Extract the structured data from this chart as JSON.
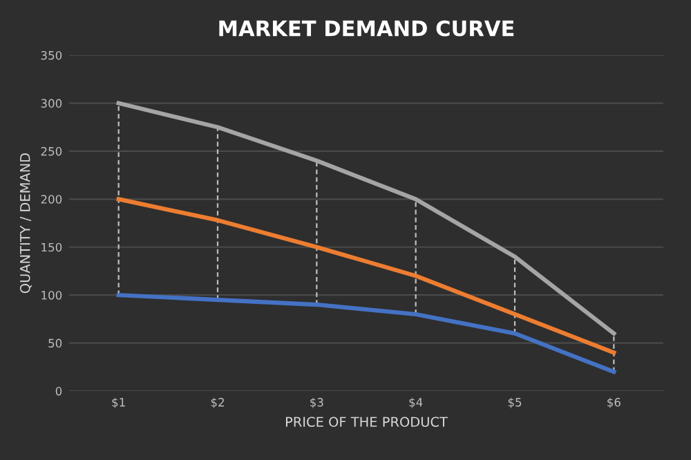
{
  "chart_data": {
    "type": "line",
    "title": "MARKET DEMAND CURVE",
    "xlabel": "PRICE OF THE PRODUCT",
    "ylabel": "QUANTITY / DEMAND",
    "categories": [
      "$1",
      "$2",
      "$3",
      "$4",
      "$5",
      "$6"
    ],
    "series": [
      {
        "color": "#a5a5a5",
        "values": [
          300,
          275,
          240,
          200,
          140,
          60
        ]
      },
      {
        "color": "#ed7d31",
        "values": [
          200,
          178,
          150,
          120,
          80,
          40
        ]
      },
      {
        "color": "#4472c4",
        "values": [
          100,
          95,
          90,
          80,
          60,
          20
        ],
        "errors": [
          [
            100,
            300
          ],
          [
            95,
            275
          ],
          [
            90,
            240
          ],
          [
            80,
            200
          ],
          [
            60,
            140
          ],
          [
            20,
            60
          ]
        ]
      }
    ],
    "ylim": [
      0,
      350
    ],
    "yticks": [
      0,
      50,
      100,
      150,
      200,
      250,
      300,
      350
    ],
    "grid": "y",
    "marker": "none",
    "line_style": "solid"
  }
}
